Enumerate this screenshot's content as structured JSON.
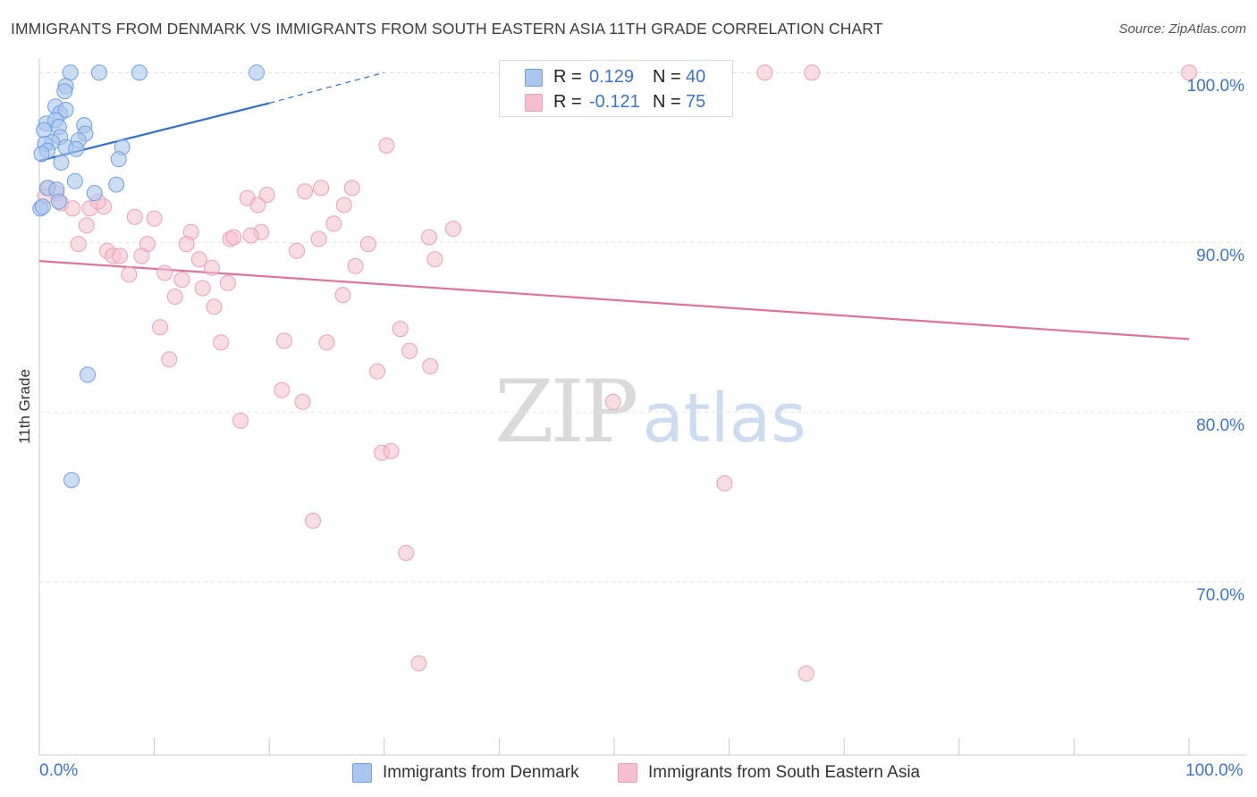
{
  "title": "IMMIGRANTS FROM DENMARK VS IMMIGRANTS FROM SOUTH EASTERN ASIA 11TH GRADE CORRELATION CHART",
  "source": "Source: ZipAtlas.com",
  "watermark": {
    "zip": "ZIP",
    "atlas": "atlas"
  },
  "legend_top": {
    "rows": [
      {
        "r_label": "R =",
        "r_value": "0.129",
        "n_label": "N =",
        "n_value": "40"
      },
      {
        "r_label": "R =",
        "r_value": "-0.121",
        "n_label": "N =",
        "n_value": "75"
      }
    ]
  },
  "colors": {
    "blue_fill": "#a9c6ef",
    "blue_stroke": "#6f9fe0",
    "blue_line": "#2e6fd0",
    "pink_fill": "#f6bfd0",
    "pink_stroke": "#eaa0b8",
    "pink_line": "#e4709a",
    "axis_text": "#3d73c9",
    "grid": "#e3e3e3"
  },
  "chart_data": {
    "type": "scatter",
    "title": "IMMIGRANTS FROM DENMARK VS IMMIGRANTS FROM SOUTH EASTERN ASIA 11TH GRADE CORRELATION CHART",
    "xlabel": "",
    "ylabel": "11th Grade",
    "xlim": [
      0,
      100
    ],
    "ylim": [
      59.8,
      100.8
    ],
    "x_tick_labels": [
      "0.0%",
      "100.0%"
    ],
    "y_ticks": [
      70,
      80,
      90,
      100
    ],
    "y_tick_labels": [
      "70.0%",
      "80.0%",
      "90.0%",
      "100.0%"
    ],
    "grid": true,
    "series": [
      {
        "name": "Immigrants from Denmark",
        "color": "#a9c6ef",
        "R": 0.129,
        "N": 40,
        "trend": {
          "x0": 0,
          "y0": 94.8,
          "x1": 20,
          "y1": 98.2,
          "dash_x1": 30,
          "dash_y1": 100.0
        },
        "points": [
          {
            "x": 2.7,
            "y": 100.0
          },
          {
            "x": 5.2,
            "y": 100.0
          },
          {
            "x": 8.7,
            "y": 100.0
          },
          {
            "x": 18.9,
            "y": 100.0
          },
          {
            "x": 2.3,
            "y": 99.2
          },
          {
            "x": 2.2,
            "y": 98.9
          },
          {
            "x": 1.4,
            "y": 98.0
          },
          {
            "x": 1.8,
            "y": 97.6
          },
          {
            "x": 2.3,
            "y": 97.8
          },
          {
            "x": 0.6,
            "y": 97.0
          },
          {
            "x": 1.4,
            "y": 97.2
          },
          {
            "x": 1.7,
            "y": 96.8
          },
          {
            "x": 3.9,
            "y": 96.9
          },
          {
            "x": 0.4,
            "y": 96.6
          },
          {
            "x": 4.0,
            "y": 96.4
          },
          {
            "x": 1.8,
            "y": 96.2
          },
          {
            "x": 3.4,
            "y": 96.0
          },
          {
            "x": 1.1,
            "y": 95.9
          },
          {
            "x": 0.5,
            "y": 95.8
          },
          {
            "x": 2.3,
            "y": 95.6
          },
          {
            "x": 3.2,
            "y": 95.5
          },
          {
            "x": 7.2,
            "y": 95.6
          },
          {
            "x": 0.7,
            "y": 95.4
          },
          {
            "x": 0.2,
            "y": 95.2
          },
          {
            "x": 6.9,
            "y": 94.9
          },
          {
            "x": 1.9,
            "y": 94.7
          },
          {
            "x": 3.1,
            "y": 93.6
          },
          {
            "x": 6.7,
            "y": 93.4
          },
          {
            "x": 0.7,
            "y": 93.2
          },
          {
            "x": 1.5,
            "y": 93.1
          },
          {
            "x": 4.8,
            "y": 92.9
          },
          {
            "x": 1.7,
            "y": 92.4
          },
          {
            "x": 0.1,
            "y": 92.0
          },
          {
            "x": 0.3,
            "y": 92.1
          },
          {
            "x": 4.2,
            "y": 82.2
          },
          {
            "x": 2.8,
            "y": 76.0
          }
        ]
      },
      {
        "name": "Immigrants from South Eastern Asia",
        "color": "#f6bfd0",
        "R": -0.121,
        "N": 75,
        "trend": {
          "x0": 0,
          "y0": 88.9,
          "x1": 100,
          "y1": 84.3
        },
        "points": [
          {
            "x": 63.1,
            "y": 100.0
          },
          {
            "x": 67.2,
            "y": 100.0
          },
          {
            "x": 100.0,
            "y": 100.0
          },
          {
            "x": 30.2,
            "y": 95.7
          },
          {
            "x": 0.8,
            "y": 93.2
          },
          {
            "x": 1.5,
            "y": 92.9
          },
          {
            "x": 0.5,
            "y": 92.7
          },
          {
            "x": 1.9,
            "y": 92.3
          },
          {
            "x": 2.9,
            "y": 92.0
          },
          {
            "x": 4.4,
            "y": 92.0
          },
          {
            "x": 5.6,
            "y": 92.1
          },
          {
            "x": 5.1,
            "y": 92.4
          },
          {
            "x": 18.1,
            "y": 92.6
          },
          {
            "x": 19.8,
            "y": 92.8
          },
          {
            "x": 23.1,
            "y": 93.0
          },
          {
            "x": 24.5,
            "y": 93.2
          },
          {
            "x": 27.2,
            "y": 93.2
          },
          {
            "x": 19.0,
            "y": 92.2
          },
          {
            "x": 26.5,
            "y": 92.2
          },
          {
            "x": 8.3,
            "y": 91.5
          },
          {
            "x": 10.0,
            "y": 91.4
          },
          {
            "x": 25.6,
            "y": 91.1
          },
          {
            "x": 4.1,
            "y": 91.0
          },
          {
            "x": 36.0,
            "y": 90.8
          },
          {
            "x": 13.2,
            "y": 90.6
          },
          {
            "x": 19.3,
            "y": 90.6
          },
          {
            "x": 18.4,
            "y": 90.4
          },
          {
            "x": 33.9,
            "y": 90.3
          },
          {
            "x": 16.6,
            "y": 90.2
          },
          {
            "x": 16.9,
            "y": 90.3
          },
          {
            "x": 24.3,
            "y": 90.2
          },
          {
            "x": 9.4,
            "y": 89.9
          },
          {
            "x": 12.8,
            "y": 89.9
          },
          {
            "x": 28.6,
            "y": 89.9
          },
          {
            "x": 3.4,
            "y": 89.9
          },
          {
            "x": 5.9,
            "y": 89.5
          },
          {
            "x": 22.4,
            "y": 89.5
          },
          {
            "x": 6.4,
            "y": 89.2
          },
          {
            "x": 7.0,
            "y": 89.2
          },
          {
            "x": 8.9,
            "y": 89.2
          },
          {
            "x": 13.9,
            "y": 89.0
          },
          {
            "x": 34.4,
            "y": 89.0
          },
          {
            "x": 15.0,
            "y": 88.5
          },
          {
            "x": 27.5,
            "y": 88.6
          },
          {
            "x": 7.8,
            "y": 88.1
          },
          {
            "x": 10.9,
            "y": 88.2
          },
          {
            "x": 12.4,
            "y": 87.8
          },
          {
            "x": 16.4,
            "y": 87.6
          },
          {
            "x": 14.2,
            "y": 87.3
          },
          {
            "x": 26.4,
            "y": 86.9
          },
          {
            "x": 11.8,
            "y": 86.8
          },
          {
            "x": 15.2,
            "y": 86.2
          },
          {
            "x": 10.5,
            "y": 85.0
          },
          {
            "x": 31.4,
            "y": 84.9
          },
          {
            "x": 15.8,
            "y": 84.1
          },
          {
            "x": 21.3,
            "y": 84.2
          },
          {
            "x": 25.0,
            "y": 84.1
          },
          {
            "x": 32.2,
            "y": 83.6
          },
          {
            "x": 11.3,
            "y": 83.1
          },
          {
            "x": 34.0,
            "y": 82.7
          },
          {
            "x": 29.4,
            "y": 82.4
          },
          {
            "x": 21.1,
            "y": 81.3
          },
          {
            "x": 22.9,
            "y": 80.6
          },
          {
            "x": 49.9,
            "y": 80.6
          },
          {
            "x": 17.5,
            "y": 79.5
          },
          {
            "x": 29.8,
            "y": 77.6
          },
          {
            "x": 30.6,
            "y": 77.7
          },
          {
            "x": 59.6,
            "y": 75.8
          },
          {
            "x": 23.8,
            "y": 73.6
          },
          {
            "x": 31.9,
            "y": 71.7
          },
          {
            "x": 33.0,
            "y": 65.2
          },
          {
            "x": 66.7,
            "y": 64.6
          }
        ]
      }
    ]
  },
  "legend_bottom": [
    "Immigrants from Denmark",
    "Immigrants from South Eastern Asia"
  ]
}
